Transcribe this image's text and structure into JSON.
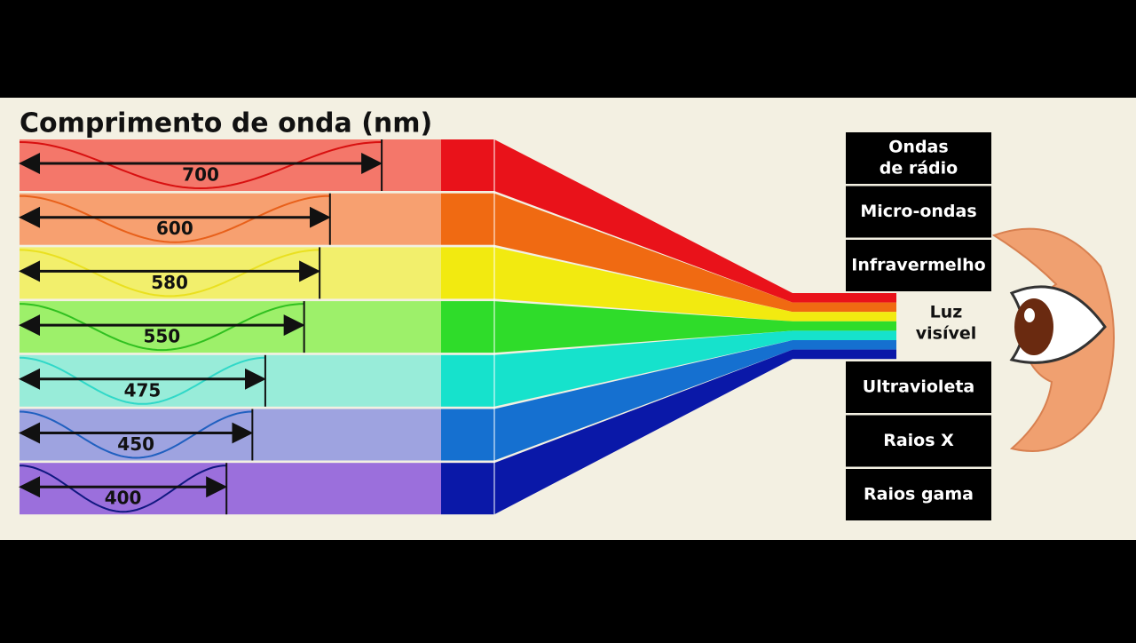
{
  "title": "Comprimento de onda (nm)",
  "bands": [
    {
      "wavelength": 700,
      "light": "#f4776a",
      "solid": "#e9121a",
      "wave": "#d81010"
    },
    {
      "wavelength": 600,
      "light": "#f7a070",
      "solid": "#f06a12",
      "wave": "#e8601a"
    },
    {
      "wavelength": 580,
      "light": "#f2ef6c",
      "solid": "#f2ea10",
      "wave": "#eae020"
    },
    {
      "wavelength": 550,
      "light": "#9df06a",
      "solid": "#2fdc2a",
      "wave": "#30c020"
    },
    {
      "wavelength": 475,
      "light": "#98ecd9",
      "solid": "#16e2cc",
      "wave": "#30d8c8"
    },
    {
      "wavelength": 450,
      "light": "#9ea3e0",
      "solid": "#1570d0",
      "wave": "#2060c0"
    },
    {
      "wavelength": 400,
      "light": "#9b6fdc",
      "solid": "#0a18a8",
      "wave": "#101880"
    }
  ],
  "spectrum_upper": [
    [
      "Ondas",
      "de rádio"
    ],
    [
      "Micro-ondas"
    ],
    [
      "Infravermelho"
    ]
  ],
  "visible_label": [
    "Luz",
    "visível"
  ],
  "spectrum_lower": [
    [
      "Ultravioleta"
    ],
    [
      "Raios X"
    ],
    [
      "Raios gama"
    ]
  ]
}
